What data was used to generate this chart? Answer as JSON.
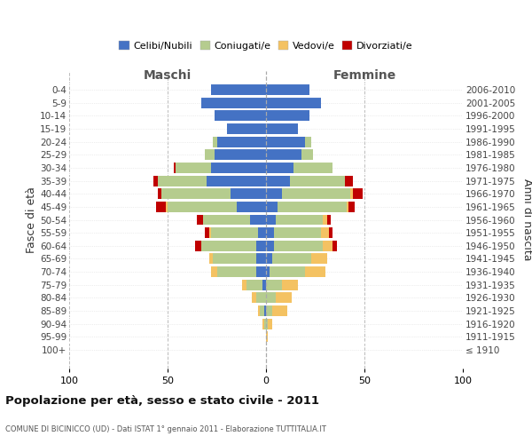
{
  "age_groups": [
    "100+",
    "95-99",
    "90-94",
    "85-89",
    "80-84",
    "75-79",
    "70-74",
    "65-69",
    "60-64",
    "55-59",
    "50-54",
    "45-49",
    "40-44",
    "35-39",
    "30-34",
    "25-29",
    "20-24",
    "15-19",
    "10-14",
    "5-9",
    "0-4"
  ],
  "birth_years": [
    "≤ 1910",
    "1911-1915",
    "1916-1920",
    "1921-1925",
    "1926-1930",
    "1931-1935",
    "1936-1940",
    "1941-1945",
    "1946-1950",
    "1951-1955",
    "1956-1960",
    "1961-1965",
    "1966-1970",
    "1971-1975",
    "1976-1980",
    "1981-1985",
    "1986-1990",
    "1991-1995",
    "1996-2000",
    "2001-2005",
    "2006-2010"
  ],
  "maschi_celibi": [
    0,
    0,
    0,
    1,
    0,
    2,
    5,
    5,
    5,
    4,
    8,
    15,
    18,
    30,
    28,
    26,
    25,
    20,
    26,
    33,
    28
  ],
  "maschi_coniugati": [
    0,
    0,
    1,
    2,
    5,
    8,
    20,
    22,
    28,
    24,
    24,
    35,
    35,
    25,
    18,
    5,
    2,
    0,
    0,
    0,
    0
  ],
  "maschi_vedovi": [
    0,
    0,
    1,
    1,
    2,
    2,
    3,
    2,
    0,
    1,
    0,
    1,
    0,
    0,
    0,
    0,
    0,
    0,
    0,
    0,
    0
  ],
  "maschi_divorziati": [
    0,
    0,
    0,
    0,
    0,
    0,
    0,
    0,
    3,
    2,
    3,
    5,
    2,
    2,
    1,
    0,
    0,
    0,
    0,
    0,
    0
  ],
  "femmine_nubili": [
    0,
    0,
    0,
    0,
    0,
    0,
    2,
    3,
    4,
    4,
    5,
    6,
    8,
    12,
    14,
    18,
    20,
    16,
    22,
    28,
    22
  ],
  "femmine_coniugate": [
    0,
    0,
    1,
    3,
    5,
    8,
    18,
    20,
    25,
    24,
    24,
    35,
    35,
    28,
    20,
    6,
    3,
    0,
    0,
    0,
    0
  ],
  "femmine_vedove": [
    0,
    1,
    2,
    8,
    8,
    8,
    10,
    8,
    5,
    4,
    2,
    1,
    1,
    0,
    0,
    0,
    0,
    0,
    0,
    0,
    0
  ],
  "femmine_divorziate": [
    0,
    0,
    0,
    0,
    0,
    0,
    0,
    0,
    2,
    2,
    2,
    3,
    5,
    4,
    0,
    0,
    0,
    0,
    0,
    0,
    0
  ],
  "color_celibi": "#4472c4",
  "color_coniugati": "#b5cc8e",
  "color_vedovi": "#f4c262",
  "color_divorziati": "#c00000",
  "xlim": 100,
  "title": "Popolazione per età, sesso e stato civile - 2011",
  "subtitle": "COMUNE DI BICINICCO (UD) - Dati ISTAT 1° gennaio 2011 - Elaborazione TUTTITALIA.IT",
  "ylabel_left": "Fasce di età",
  "ylabel_right": "Anni di nascita",
  "label_maschi": "Maschi",
  "label_femmine": "Femmine",
  "legend_labels": [
    "Celibi/Nubili",
    "Coniugati/e",
    "Vedovi/e",
    "Divorziati/e"
  ],
  "bg_color": "#ffffff",
  "grid_color": "#cccccc"
}
